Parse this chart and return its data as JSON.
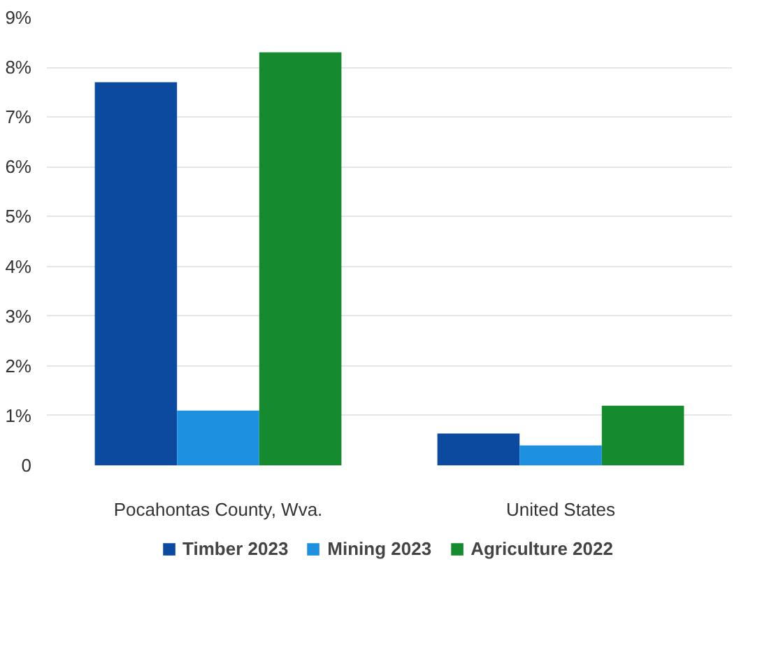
{
  "chart_data": {
    "type": "bar",
    "categories": [
      "Pocahontas County, Wva.",
      "United States"
    ],
    "series": [
      {
        "name": "Timber 2023",
        "color": "#0b4a9e",
        "values": [
          7.7,
          0.64
        ]
      },
      {
        "name": "Mining 2023",
        "color": "#1e90e0",
        "values": [
          1.1,
          0.4
        ]
      },
      {
        "name": "Agriculture 2022",
        "color": "#158a2e",
        "values": [
          8.3,
          1.2
        ]
      }
    ],
    "ylim": [
      0,
      9
    ],
    "yticks": [
      0,
      {
        "value": 1,
        "label": "1%"
      },
      {
        "value": 2,
        "label": "2%"
      },
      {
        "value": 3,
        "label": "3%"
      },
      {
        "value": 4,
        "label": "4%"
      },
      {
        "value": 5,
        "label": "5%"
      },
      {
        "value": 6,
        "label": "6%"
      },
      {
        "value": 7,
        "label": "7%"
      },
      {
        "value": 8,
        "label": "8%"
      },
      {
        "value": 9,
        "label": "9%"
      }
    ],
    "grid": "y",
    "legend": "bottom"
  }
}
